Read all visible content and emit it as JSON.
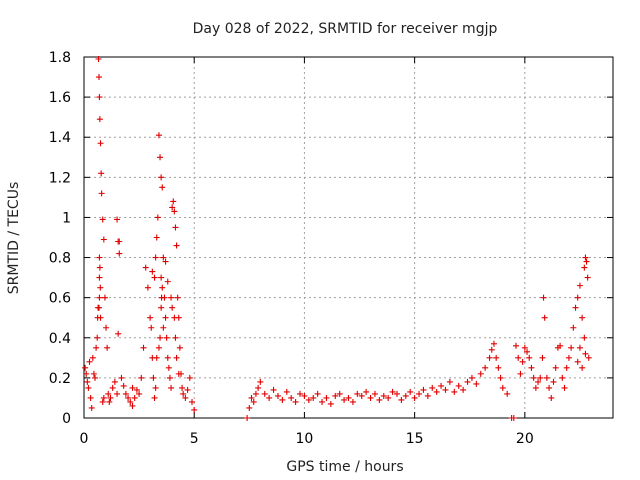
{
  "chart_data": {
    "type": "scatter",
    "title": "Day 028 of 2022, SRMTID for receiver mgjp",
    "xlabel": "GPS time / hours",
    "ylabel": "SRMTID / TECUs",
    "xlim": [
      0,
      24
    ],
    "ylim": [
      0,
      1.8
    ],
    "x_ticks": [
      0,
      5,
      10,
      15,
      20
    ],
    "x_tick_labels": [
      "0",
      "5",
      "10",
      "15",
      "20"
    ],
    "y_ticks": [
      0,
      0.2,
      0.4,
      0.6,
      0.8,
      1,
      1.2,
      1.4,
      1.6,
      1.8
    ],
    "y_tick_labels": [
      "0",
      "0.2",
      "0.4",
      "0.6",
      "0.8",
      "1",
      "1.2",
      "1.4",
      "1.6",
      "1.8"
    ],
    "grid": true,
    "marker": "plus",
    "color": "#e00000",
    "series": [
      {
        "name": "SRMTID",
        "x": [
          0.05,
          0.1,
          0.15,
          0.2,
          0.25,
          0.3,
          0.35,
          0.4,
          0.45,
          0.5,
          0.55,
          0.6,
          0.62,
          0.64,
          0.66,
          0.68,
          0.7,
          0.72,
          0.75,
          0.78,
          0.8,
          0.85,
          0.9,
          0.95,
          1.0,
          1.05,
          1.1,
          1.15,
          1.2,
          1.3,
          1.4,
          1.5,
          1.55,
          1.6,
          1.7,
          1.8,
          1.9,
          2.0,
          2.1,
          2.2,
          2.3,
          2.4,
          2.5,
          2.6,
          2.7,
          2.8,
          2.9,
          3.0,
          3.05,
          3.1,
          3.15,
          3.2,
          3.25,
          3.3,
          3.35,
          3.4,
          3.45,
          3.5,
          3.55,
          3.6,
          3.65,
          3.7,
          3.75,
          3.8,
          3.85,
          3.9,
          3.95,
          4.0,
          4.05,
          4.1,
          4.15,
          4.2,
          4.25,
          4.3,
          4.35,
          4.4,
          4.45,
          4.5,
          4.6,
          4.7,
          4.8,
          4.9,
          5.0,
          0.7,
          0.72,
          0.7,
          0.74,
          0.7,
          0.68,
          0.75,
          1.5,
          1.55,
          3.5,
          3.52,
          3.55,
          3.5,
          3.4,
          3.45,
          3.6,
          3.3,
          4.0,
          4.1,
          3.95,
          4.15,
          4.2,
          3.2,
          3.25,
          0.85,
          0.9,
          1.6,
          2.2,
          3.1,
          3.7,
          3.8,
          4.3,
          7.4,
          7.5,
          7.6,
          7.7,
          7.8,
          7.9,
          8.0,
          8.2,
          8.4,
          8.6,
          8.8,
          9.0,
          9.2,
          9.4,
          9.6,
          9.8,
          10.0,
          10.2,
          10.4,
          10.6,
          10.8,
          11.0,
          11.2,
          11.4,
          11.6,
          11.8,
          12.0,
          12.2,
          12.4,
          12.6,
          12.8,
          13.0,
          13.2,
          13.4,
          13.6,
          13.8,
          14.0,
          14.2,
          14.4,
          14.6,
          14.8,
          15.0,
          15.2,
          15.4,
          15.6,
          15.8,
          16.0,
          16.2,
          16.4,
          16.6,
          16.8,
          17.0,
          17.2,
          17.4,
          17.6,
          17.8,
          18.0,
          18.2,
          18.4,
          18.5,
          18.6,
          18.7,
          18.8,
          18.9,
          19.0,
          19.2,
          19.4,
          19.5,
          19.6,
          19.7,
          19.8,
          19.9,
          20.0,
          20.1,
          20.2,
          20.3,
          20.4,
          20.5,
          20.6,
          20.7,
          20.8,
          20.85,
          20.9,
          21.0,
          21.1,
          21.2,
          21.3,
          21.4,
          21.5,
          21.6,
          21.7,
          21.8,
          21.9,
          22.0,
          22.1,
          22.2,
          22.3,
          22.4,
          22.5,
          22.6,
          22.7,
          22.75,
          22.8,
          22.85,
          22.9,
          22.5,
          22.6,
          22.7,
          22.75,
          22.4
        ],
        "y": [
          0.25,
          0.22,
          0.18,
          0.15,
          0.28,
          0.1,
          0.05,
          0.3,
          0.22,
          0.2,
          0.35,
          0.4,
          0.5,
          0.55,
          1.79,
          1.7,
          1.6,
          1.49,
          1.37,
          1.22,
          1.12,
          0.99,
          0.89,
          0.6,
          0.45,
          0.35,
          0.12,
          0.08,
          0.1,
          0.15,
          0.18,
          0.12,
          0.42,
          0.88,
          0.2,
          0.16,
          0.12,
          0.1,
          0.08,
          0.06,
          0.1,
          0.14,
          0.12,
          0.2,
          0.35,
          0.75,
          0.65,
          0.5,
          0.45,
          0.3,
          0.2,
          0.7,
          0.8,
          0.9,
          1.0,
          1.41,
          1.3,
          1.2,
          1.15,
          0.8,
          0.6,
          0.5,
          0.4,
          0.3,
          0.25,
          0.2,
          0.15,
          1.05,
          1.08,
          1.03,
          0.95,
          0.86,
          0.6,
          0.5,
          0.35,
          0.22,
          0.15,
          0.12,
          0.1,
          0.14,
          0.2,
          0.08,
          0.04,
          0.8,
          0.75,
          0.7,
          0.65,
          0.6,
          0.55,
          0.5,
          0.99,
          0.88,
          0.55,
          0.6,
          0.65,
          0.7,
          0.35,
          0.4,
          0.45,
          0.3,
          0.55,
          0.5,
          0.6,
          0.4,
          0.3,
          0.1,
          0.15,
          0.08,
          0.1,
          0.82,
          0.15,
          0.73,
          0.78,
          0.68,
          0.22,
          0.0,
          0.05,
          0.1,
          0.08,
          0.12,
          0.15,
          0.18,
          0.12,
          0.1,
          0.14,
          0.11,
          0.09,
          0.13,
          0.1,
          0.08,
          0.12,
          0.11,
          0.09,
          0.1,
          0.12,
          0.08,
          0.1,
          0.07,
          0.11,
          0.12,
          0.09,
          0.1,
          0.08,
          0.12,
          0.11,
          0.13,
          0.1,
          0.12,
          0.09,
          0.11,
          0.1,
          0.13,
          0.12,
          0.09,
          0.11,
          0.13,
          0.1,
          0.12,
          0.14,
          0.11,
          0.15,
          0.13,
          0.16,
          0.14,
          0.18,
          0.13,
          0.16,
          0.14,
          0.18,
          0.2,
          0.17,
          0.22,
          0.25,
          0.3,
          0.34,
          0.37,
          0.3,
          0.25,
          0.2,
          0.15,
          0.12,
          0.0,
          0.0,
          0.36,
          0.3,
          0.22,
          0.28,
          0.35,
          0.33,
          0.3,
          0.25,
          0.2,
          0.15,
          0.18,
          0.2,
          0.3,
          0.6,
          0.5,
          0.2,
          0.15,
          0.1,
          0.18,
          0.25,
          0.35,
          0.36,
          0.2,
          0.15,
          0.25,
          0.3,
          0.35,
          0.45,
          0.55,
          0.6,
          0.66,
          0.5,
          0.75,
          0.8,
          0.78,
          0.7,
          0.3,
          0.35,
          0.25,
          0.4,
          0.32,
          0.28
        ]
      }
    ]
  }
}
